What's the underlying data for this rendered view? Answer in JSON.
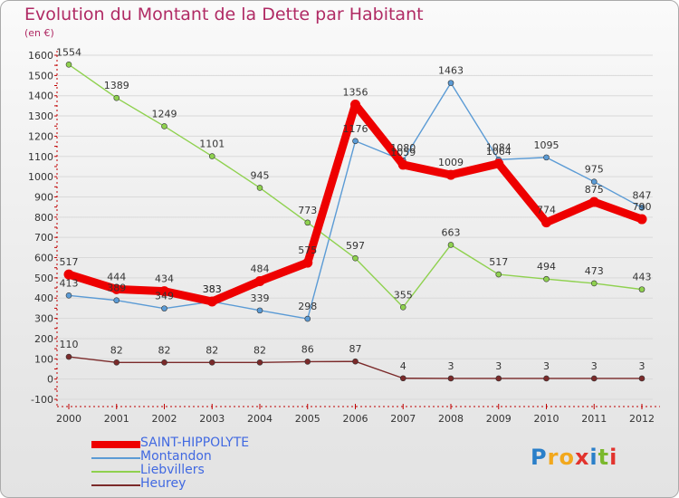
{
  "title": "Evolution du Montant de la Dette par Habitant",
  "unit_label": "(en €)",
  "brand": {
    "letters": [
      "P",
      "r",
      "o",
      "x",
      "i",
      "t",
      "i"
    ],
    "colors": [
      "#2a7fc9",
      "#f2a81d",
      "#f2a81d",
      "#e2332d",
      "#2a7fc9",
      "#7bb82d",
      "#e2332d"
    ]
  },
  "colors": {
    "title": "#b02a64",
    "axis": "#c00000",
    "grid": "#d9d9d9",
    "legend_text": "#4169e1"
  },
  "chart_data": {
    "type": "line",
    "x": [
      "2000",
      "2001",
      "2002",
      "2003",
      "2004",
      "2005",
      "2006",
      "2007",
      "2008",
      "2009",
      "2010",
      "2011",
      "2012"
    ],
    "ylim": [
      -100,
      1600
    ],
    "yticks": [
      -100,
      0,
      100,
      200,
      300,
      400,
      500,
      600,
      700,
      800,
      900,
      1000,
      1100,
      1200,
      1300,
      1400,
      1500,
      1600
    ],
    "grid": "horizontal",
    "legend_position": "bottom-left",
    "series": [
      {
        "name": "SAINT-HIPPOLYTE",
        "color": "#ee0000",
        "values": [
          517,
          444,
          434,
          383,
          484,
          575,
          1356,
          1059,
          1009,
          1064,
          774,
          875,
          790
        ],
        "labels": [
          "517",
          "444",
          "434",
          "383",
          "484",
          "575",
          "1356",
          "1059",
          "1009",
          "1064",
          "774",
          "875",
          "790"
        ],
        "width": 9,
        "label_color": "#333333"
      },
      {
        "name": "Montandon",
        "color": "#5b9bd5",
        "values": [
          413,
          389,
          349,
          383,
          339,
          298,
          1176,
          1080,
          1463,
          1084,
          1095,
          975,
          847
        ],
        "labels": [
          "413",
          "389",
          "349",
          "383",
          "339",
          "298",
          "1176",
          "1080",
          "1463",
          "1084",
          "1095",
          "975",
          "847"
        ],
        "width": 1.4,
        "label_color": "#333333"
      },
      {
        "name": "Liebvillers",
        "color": "#8fd14f",
        "values": [
          1554,
          1389,
          1249,
          1101,
          945,
          773,
          597,
          355,
          663,
          517,
          494,
          473,
          443
        ],
        "labels": [
          "1554",
          "1389",
          "1249",
          "1101",
          "945",
          "773",
          "597",
          "355",
          "663",
          "517",
          "494",
          "473",
          "443"
        ],
        "width": 1.4,
        "label_color": "#333333"
      },
      {
        "name": "Heurey",
        "color": "#7b2a2a",
        "values": [
          110,
          82,
          82,
          82,
          82,
          86,
          87,
          4,
          3,
          3,
          3,
          3,
          3
        ],
        "labels": [
          "110",
          "82",
          "82",
          "82",
          "82",
          "86",
          "87",
          "4",
          "3",
          "3",
          "3",
          "3",
          "3"
        ],
        "width": 1.4,
        "label_color": "#333333"
      }
    ]
  }
}
